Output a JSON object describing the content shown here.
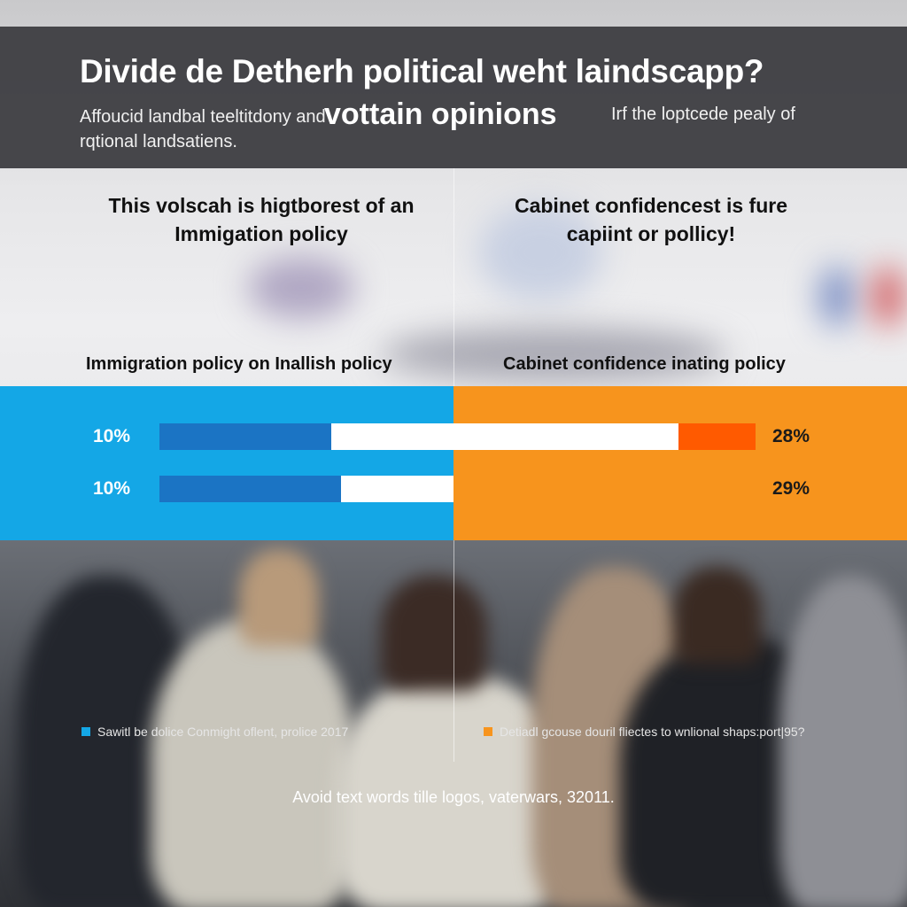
{
  "header": {
    "title": "Divide de Detherh political weht laindscapp?",
    "subtitle_left": "Affoucid landbal teeltitdony and rqtional landsatiens.",
    "subtitle_emphasis": "vottain opinions",
    "subtitle_right": "Irf the loptcede pealy of"
  },
  "panels": {
    "left_title": "This volscah is higtborest of an Immigation policy",
    "right_title": "Cabinet confidencest is fure capiint or pollicy!",
    "left_section": "Immigration policy on Inallish policy",
    "right_section": "Cabinet confidence inating policy"
  },
  "colors": {
    "left_band": "#14a7e6",
    "right_band": "#f7941d",
    "bar_dark_blue": "#1b74c4",
    "bar_white": "#ffffff",
    "bar_red_orange": "#ff5a00"
  },
  "chart_data": {
    "type": "bar",
    "orientation": "horizontal",
    "rows": [
      {
        "left_label": "10%",
        "right_label": "28%",
        "segments": [
          {
            "color": "#1b74c4",
            "fraction": 0.288
          },
          {
            "color": "#ffffff",
            "fraction": 0.583
          },
          {
            "color": "#ff5a00",
            "fraction": 0.129
          }
        ]
      },
      {
        "left_label": "10%",
        "right_label": "29%",
        "segments": [
          {
            "color": "#1b74c4",
            "fraction": 0.617
          },
          {
            "color": "#ffffff",
            "fraction": 0.383
          }
        ]
      }
    ]
  },
  "footer": {
    "left_note": "Sawitl be dolice Conmight oflent, prolice 2017",
    "right_note": "Detiadl gcouse douril fliectes to wnlional shaps:port|95?",
    "bottom": "Avoid text words tille logos, vaterwars, 32011."
  }
}
